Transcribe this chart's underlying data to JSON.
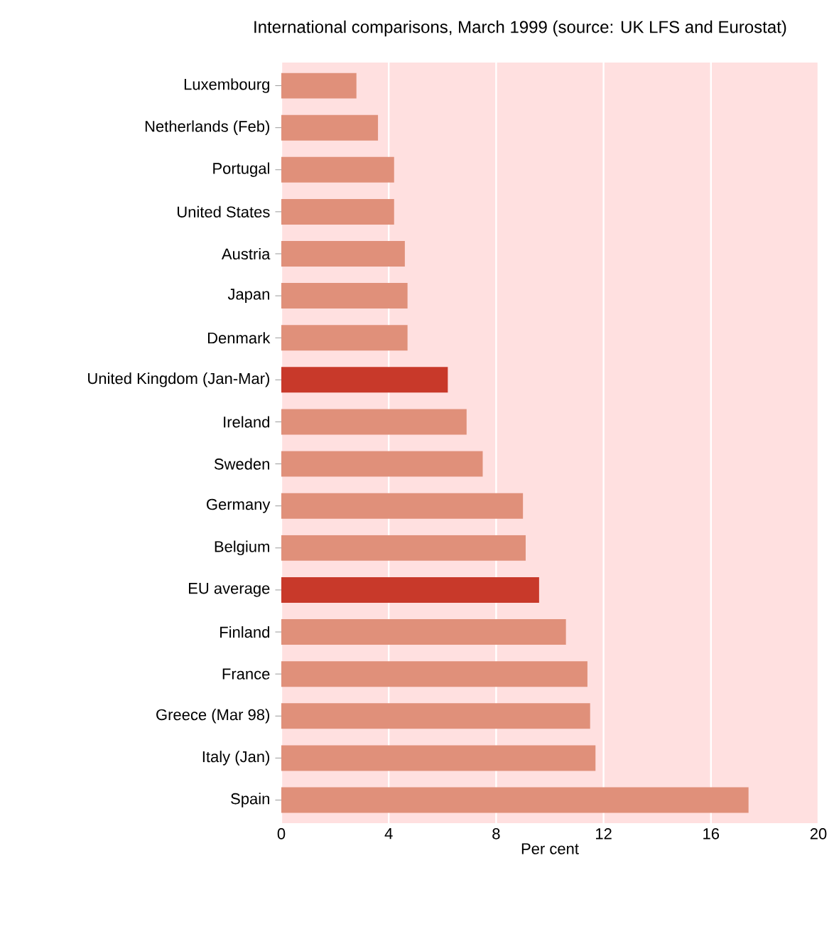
{
  "chart_data": {
    "type": "bar",
    "orientation": "horizontal",
    "title": "International comparisons, March 1999 (source: UK LFS and Eurostat)",
    "xlabel": "Per cent",
    "categories": [
      "Luxembourg",
      "Netherlands (Feb)",
      "Portugal",
      "United States",
      "Austria",
      "Japan",
      "Denmark",
      "United Kingdom (Jan-Mar)",
      "Ireland",
      "Sweden",
      "Germany",
      "Belgium",
      "EU average",
      "Finland",
      "France",
      "Greece (Mar 98)",
      "Italy (Jan)",
      "Spain"
    ],
    "values": [
      2.8,
      3.6,
      4.2,
      4.2,
      4.6,
      4.7,
      4.7,
      6.2,
      6.9,
      7.5,
      9.0,
      9.1,
      9.6,
      10.6,
      11.4,
      11.5,
      11.7,
      17.4
    ],
    "colors": [
      "#e0907a",
      "#e0907a",
      "#e0907a",
      "#e0907a",
      "#e0907a",
      "#e0907a",
      "#e0907a",
      "#c8392a",
      "#e0907a",
      "#e0907a",
      "#e0907a",
      "#e0907a",
      "#c8392a",
      "#e0907a",
      "#e0907a",
      "#e0907a",
      "#e0907a",
      "#e0907a"
    ],
    "xlim": [
      0,
      20
    ],
    "xticks": [
      0,
      4,
      8,
      12,
      16,
      20
    ],
    "grid": "x"
  }
}
